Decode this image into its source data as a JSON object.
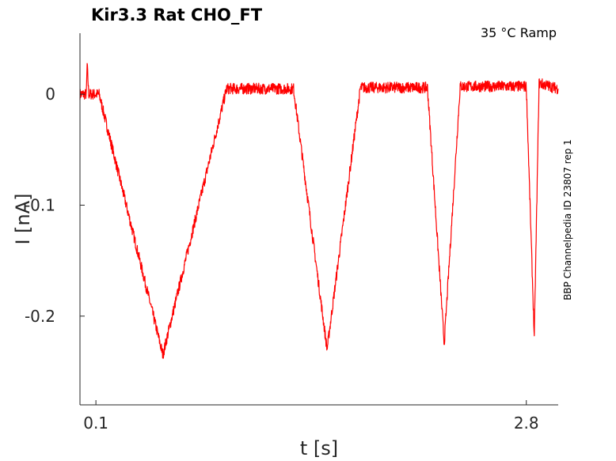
{
  "chart_data": {
    "type": "line",
    "title": "Kir3.3  Rat  CHO_FT",
    "annotation": "35 °C  Ramp",
    "side_label": "BBP Channelpedia ID 23807 rep 1",
    "xlabel": "t [s]",
    "ylabel": "I [nA]",
    "xlim": [
      0.0,
      3.0
    ],
    "ylim": [
      -0.28,
      0.055
    ],
    "x_ticks": [
      {
        "value": 0.1,
        "label": "0.1"
      },
      {
        "value": 2.8,
        "label": "2.8"
      }
    ],
    "y_ticks": [
      {
        "value": 0,
        "label": "0"
      },
      {
        "value": -0.1,
        "label": "-0.1"
      },
      {
        "value": -0.2,
        "label": "-0.2"
      }
    ],
    "grid": false,
    "series": [
      {
        "color": "#ff0000",
        "noise": 0.005,
        "points": [
          [
            0.0,
            0.0
          ],
          [
            0.04,
            0.0
          ],
          [
            0.045,
            0.027
          ],
          [
            0.055,
            0.0
          ],
          [
            0.12,
            0.0
          ],
          [
            0.52,
            -0.235
          ],
          [
            0.92,
            0.005
          ],
          [
            1.34,
            0.005
          ],
          [
            1.55,
            -0.23
          ],
          [
            1.76,
            0.006
          ],
          [
            2.18,
            0.006
          ],
          [
            2.285,
            -0.225
          ],
          [
            2.385,
            0.007
          ],
          [
            2.8,
            0.007
          ],
          [
            2.85,
            -0.22
          ],
          [
            2.88,
            0.01
          ],
          [
            3.0,
            0.005
          ]
        ]
      }
    ]
  }
}
